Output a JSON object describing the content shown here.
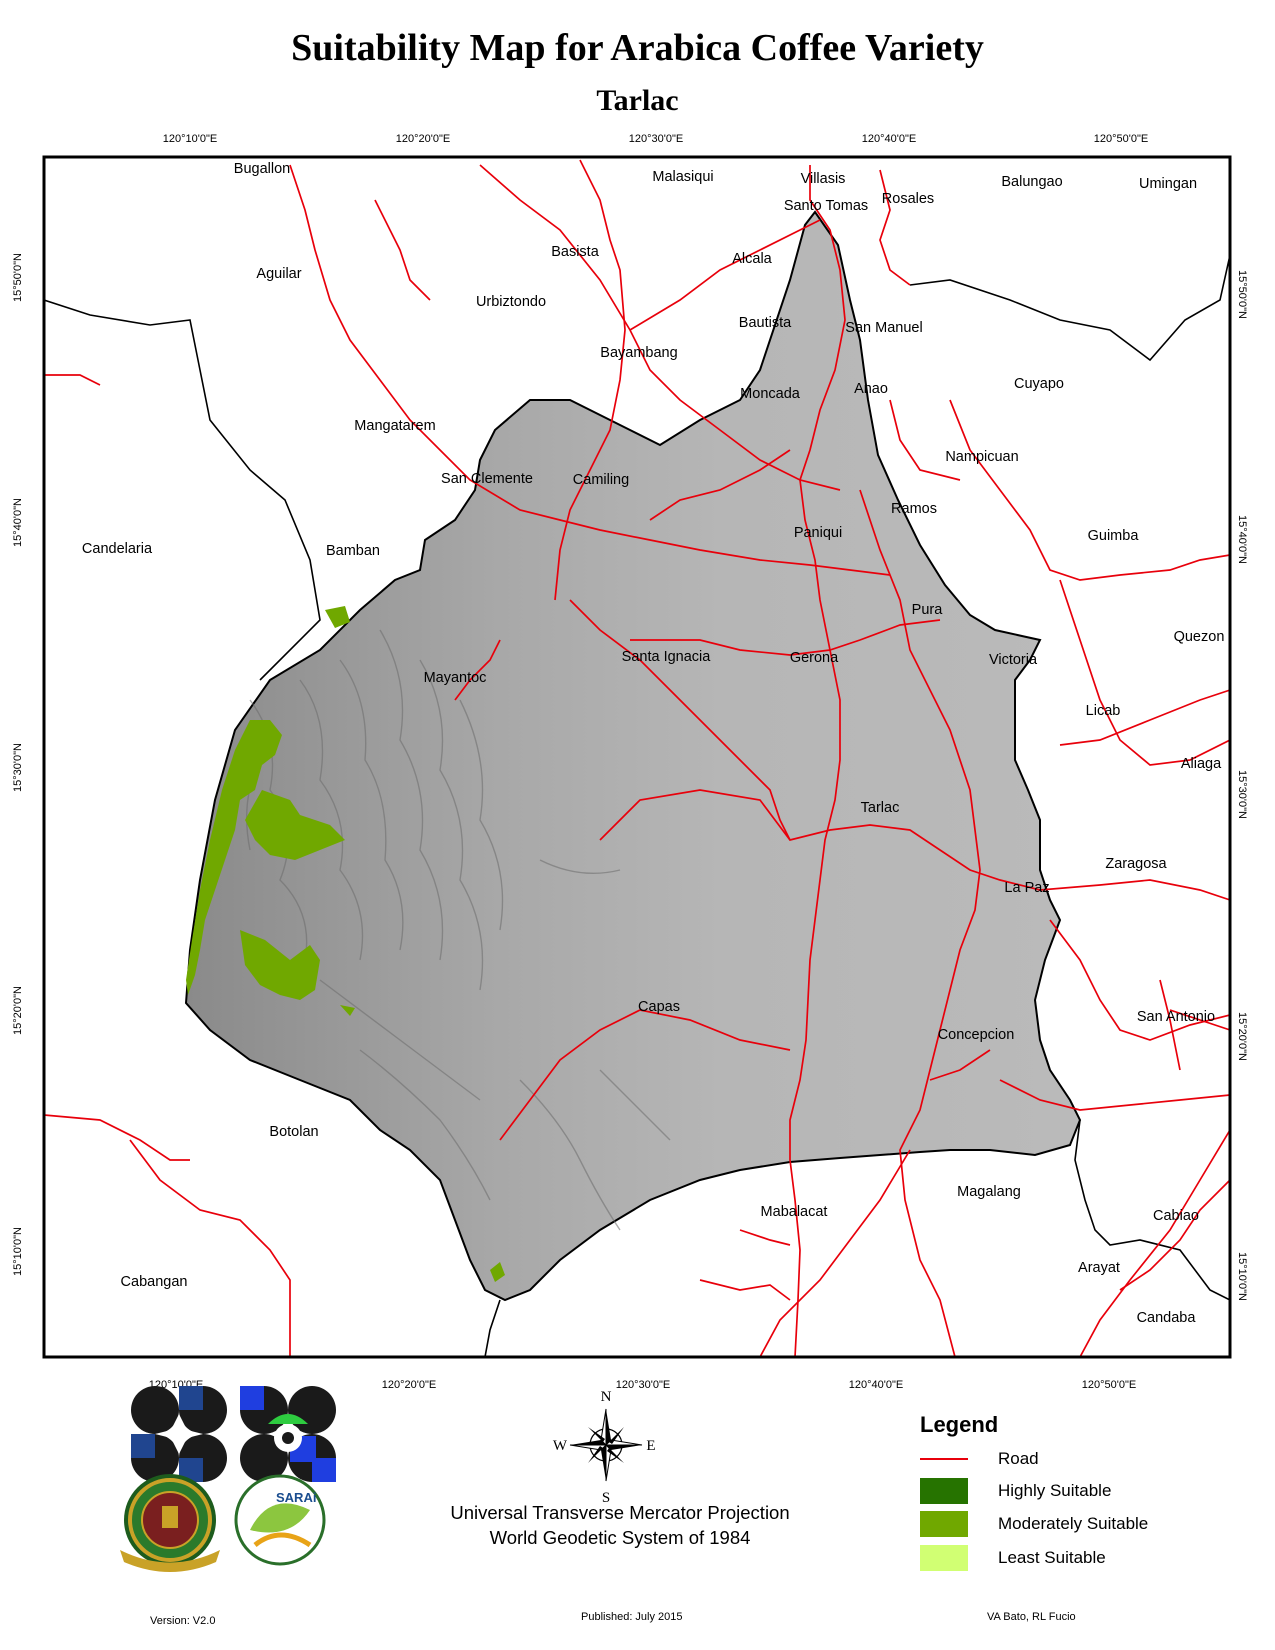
{
  "title": "Suitability Map for Arabica Coffee Variety",
  "subtitle": "Tarlac",
  "ticks": {
    "top": [
      "120°10'0\"E",
      "120°20'0\"E",
      "120°30'0\"E",
      "120°40'0\"E",
      "120°50'0\"E"
    ],
    "bottom": [
      "120°10'0\"E",
      "120°20'0\"E",
      "120°30'0\"E",
      "120°40'0\"E",
      "120°50'0\"E"
    ],
    "left": [
      "15°50'0\"N",
      "15°40'0\"N",
      "15°30'0\"N",
      "15°20'0\"N",
      "15°10'0\"N"
    ],
    "right": [
      "15°50'0\"N",
      "15°40'0\"N",
      "15°30'0\"N",
      "15°20'0\"N",
      "15°10'0\"N"
    ]
  },
  "places": [
    "Bugallon",
    "Malasiqui",
    "Villasis",
    "Santo Tomas",
    "Rosales",
    "Balungao",
    "Umingan",
    "Basista",
    "Alcala",
    "Aguilar",
    "Urbiztondo",
    "Bautista",
    "San Manuel",
    "Bayambang",
    "Moncada",
    "Anao",
    "Cuyapo",
    "Mangatarem",
    "Nampicuan",
    "San Clemente",
    "Camiling",
    "Ramos",
    "Paniqui",
    "Candelaria",
    "Bamban",
    "Guimba",
    "Pura",
    "Quezon",
    "Santa Ignacia",
    "Gerona",
    "Victoria",
    "Mayantoc",
    "Licab",
    "Aliaga",
    "Tarlac",
    "Zaragosa",
    "La Paz",
    "San Antonio",
    "Capas",
    "Concepcion",
    "Botolan",
    "Magalang",
    "Mabalacat",
    "Cabiao",
    "Arayat",
    "Cabangan",
    "Candaba"
  ],
  "compass": {
    "n": "N",
    "s": "S",
    "e": "E",
    "w": "W"
  },
  "legend": {
    "title": "Legend",
    "items": [
      {
        "label": "Road",
        "kind": "line",
        "color": "#e8000b"
      },
      {
        "label": "Highly Suitable",
        "kind": "fill",
        "color": "#267300"
      },
      {
        "label": "Moderately Suitable",
        "kind": "fill",
        "color": "#70a800"
      },
      {
        "label": "Least Suitable",
        "kind": "fill",
        "color": "#d1ff73"
      }
    ]
  },
  "projection": {
    "line1": "Universal Transverse Mercator Projection",
    "line2": "World Geodetic System of 1984"
  },
  "footer": {
    "version": "Version: V2.0",
    "published": "Published: July 2015",
    "authors": "VA Bato, RL Fucio"
  },
  "logos": {
    "seal_text": "UNIVERSITY OF THE PHILIPPINES 1908 LOS BAÑOS",
    "sarai_text": "SARAi"
  },
  "colors": {
    "terrain": "#b4b4b4",
    "road": "#e8000b",
    "boundary": "#000000"
  }
}
